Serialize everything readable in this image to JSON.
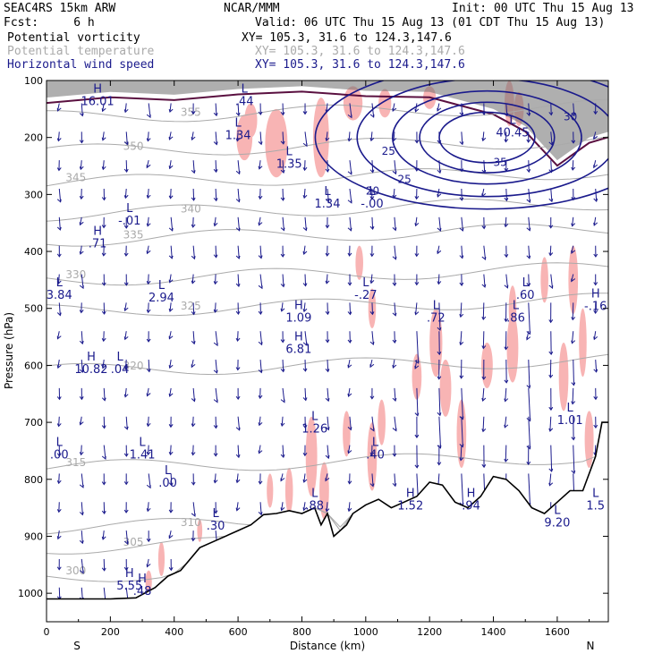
{
  "header": {
    "model": "SEAC4RS 15km ARW",
    "center": "NCAR/MMM",
    "init": "Init: 00 UTC Thu 15 Aug 13",
    "fcst": "Fcst:     6 h",
    "valid": "Valid: 06 UTC Thu 15 Aug 13 (01 CDT Thu 15 Aug 13)"
  },
  "legend": [
    {
      "name": "Potential vorticity",
      "xy": "XY= 105.3, 31.6 to 124.3,147.6",
      "color": "#000000"
    },
    {
      "name": "Potential temperature",
      "xy": "XY= 105.3, 31.6 to 124.3,147.6",
      "color": "#aaaaaa"
    },
    {
      "name": "Horizontal wind speed",
      "xy": "XY= 105.3, 31.6 to 124.3,147.6",
      "color": "#1a1a8c"
    }
  ],
  "chart_data": {
    "type": "cross-section",
    "xlabel": "Distance (km)",
    "ylabel": "Pressure (hPa)",
    "xlim": [
      0,
      1760
    ],
    "ylim": [
      1050,
      100
    ],
    "x_ticks": [
      0,
      200,
      400,
      600,
      800,
      1000,
      1200,
      1400,
      1600
    ],
    "x_tick_labels": [
      "0",
      "200",
      "400",
      "600",
      "800",
      "1000",
      "1200",
      "1400",
      "1600"
    ],
    "y_ticks": [
      100,
      200,
      300,
      400,
      500,
      600,
      700,
      800,
      900,
      1000
    ],
    "y_tick_labels": [
      "100",
      "200",
      "300",
      "400",
      "500",
      "600",
      "700",
      "800",
      "900",
      "1000"
    ],
    "direction_labels": {
      "left": "S",
      "right": "N"
    },
    "terrain_pressure": [
      [
        0,
        1010
      ],
      [
        60,
        1010
      ],
      [
        120,
        1010
      ],
      [
        200,
        1010
      ],
      [
        280,
        1008
      ],
      [
        340,
        990
      ],
      [
        380,
        970
      ],
      [
        420,
        960
      ],
      [
        480,
        920
      ],
      [
        540,
        905
      ],
      [
        600,
        890
      ],
      [
        640,
        880
      ],
      [
        680,
        862
      ],
      [
        720,
        860
      ],
      [
        760,
        855
      ],
      [
        800,
        860
      ],
      [
        840,
        850
      ],
      [
        860,
        880
      ],
      [
        880,
        860
      ],
      [
        900,
        900
      ],
      [
        940,
        880
      ],
      [
        960,
        860
      ],
      [
        1000,
        845
      ],
      [
        1040,
        835
      ],
      [
        1080,
        850
      ],
      [
        1120,
        840
      ],
      [
        1160,
        830
      ],
      [
        1200,
        805
      ],
      [
        1240,
        810
      ],
      [
        1280,
        840
      ],
      [
        1320,
        850
      ],
      [
        1360,
        830
      ],
      [
        1400,
        795
      ],
      [
        1440,
        800
      ],
      [
        1480,
        820
      ],
      [
        1520,
        850
      ],
      [
        1560,
        860
      ],
      [
        1600,
        840
      ],
      [
        1640,
        820
      ],
      [
        1680,
        820
      ],
      [
        1720,
        760
      ],
      [
        1740,
        700
      ],
      [
        1760,
        700
      ]
    ],
    "theta_contours": [
      {
        "label": "300",
        "pressure": 970
      },
      {
        "label": "305",
        "pressure": 920
      },
      {
        "label": "310",
        "pressure": 885
      },
      {
        "label": "315",
        "pressure": 780
      },
      {
        "label": "320",
        "pressure": 610
      },
      {
        "label": "325",
        "pressure": 505
      },
      {
        "label": "330",
        "pressure": 450
      },
      {
        "label": "335",
        "pressure": 380
      },
      {
        "label": "340",
        "pressure": 335
      },
      {
        "label": "345",
        "pressure": 280
      },
      {
        "label": "350",
        "pressure": 225
      },
      {
        "label": "355",
        "pressure": 165
      }
    ],
    "wind_speed_contours": [
      {
        "label": "20",
        "x": 1000,
        "p": 300
      },
      {
        "label": "25",
        "x": 1050,
        "p": 230
      },
      {
        "label": "25",
        "x": 1100,
        "p": 280
      },
      {
        "label": "30",
        "x": 1620,
        "p": 170
      },
      {
        "label": "35",
        "x": 1400,
        "p": 250
      }
    ],
    "pv_extrema": [
      {
        "kind": "H",
        "value": "16.01",
        "x": 160,
        "p": 140
      },
      {
        "kind": "L",
        "value": "1.34",
        "x": 600,
        "p": 200
      },
      {
        "kind": "L",
        "value": ".44",
        "x": 620,
        "p": 140
      },
      {
        "kind": "L",
        "value": "1.35",
        "x": 760,
        "p": 250
      },
      {
        "kind": "L",
        "value": "-.01",
        "x": 260,
        "p": 350
      },
      {
        "kind": "H",
        "value": ".71",
        "x": 160,
        "p": 390
      },
      {
        "kind": "L",
        "value": "1.34",
        "x": 880,
        "p": 320
      },
      {
        "kind": "L",
        "value": "-.00",
        "x": 1020,
        "p": 320
      },
      {
        "kind": "L",
        "value": "40.45",
        "x": 1460,
        "p": 195
      },
      {
        "kind": "L",
        "value": "3.84",
        "x": 40,
        "p": 480
      },
      {
        "kind": "L",
        "value": "2.94",
        "x": 360,
        "p": 485
      },
      {
        "kind": "L",
        "value": "-.27",
        "x": 1000,
        "p": 480
      },
      {
        "kind": "L",
        "value": ".60",
        "x": 1500,
        "p": 480
      },
      {
        "kind": "H",
        "value": "-.16",
        "x": 1720,
        "p": 500
      },
      {
        "kind": "H",
        "value": "1.09",
        "x": 790,
        "p": 520
      },
      {
        "kind": "L",
        "value": ".72",
        "x": 1220,
        "p": 520
      },
      {
        "kind": "L",
        "value": ".86",
        "x": 1470,
        "p": 520
      },
      {
        "kind": "H",
        "value": "6.81",
        "x": 790,
        "p": 575
      },
      {
        "kind": "H",
        "value": "10.82",
        "x": 140,
        "p": 610
      },
      {
        "kind": "L",
        "value": ".04",
        "x": 230,
        "p": 610
      },
      {
        "kind": "L",
        "value": "1.01",
        "x": 1640,
        "p": 700
      },
      {
        "kind": "L",
        "value": "1.26",
        "x": 840,
        "p": 715
      },
      {
        "kind": "L",
        "value": ".00",
        "x": 40,
        "p": 760
      },
      {
        "kind": "L",
        "value": "1.41",
        "x": 300,
        "p": 760
      },
      {
        "kind": "L",
        "value": ".40",
        "x": 1030,
        "p": 760
      },
      {
        "kind": "L",
        "value": ".00",
        "x": 380,
        "p": 810
      },
      {
        "kind": "H",
        "value": "1.52",
        "x": 1140,
        "p": 850
      },
      {
        "kind": "H",
        "value": ".94",
        "x": 1330,
        "p": 850
      },
      {
        "kind": "L",
        "value": ".88",
        "x": 840,
        "p": 850
      },
      {
        "kind": "L",
        "value": ".30",
        "x": 530,
        "p": 885
      },
      {
        "kind": "L",
        "value": "1.5",
        "x": 1720,
        "p": 850
      },
      {
        "kind": "L",
        "value": "9.20",
        "x": 1600,
        "p": 880
      },
      {
        "kind": "H",
        "value": "5.55",
        "x": 260,
        "p": 990
      },
      {
        "kind": "H",
        "value": ".48",
        "x": 300,
        "p": 1000
      }
    ]
  }
}
